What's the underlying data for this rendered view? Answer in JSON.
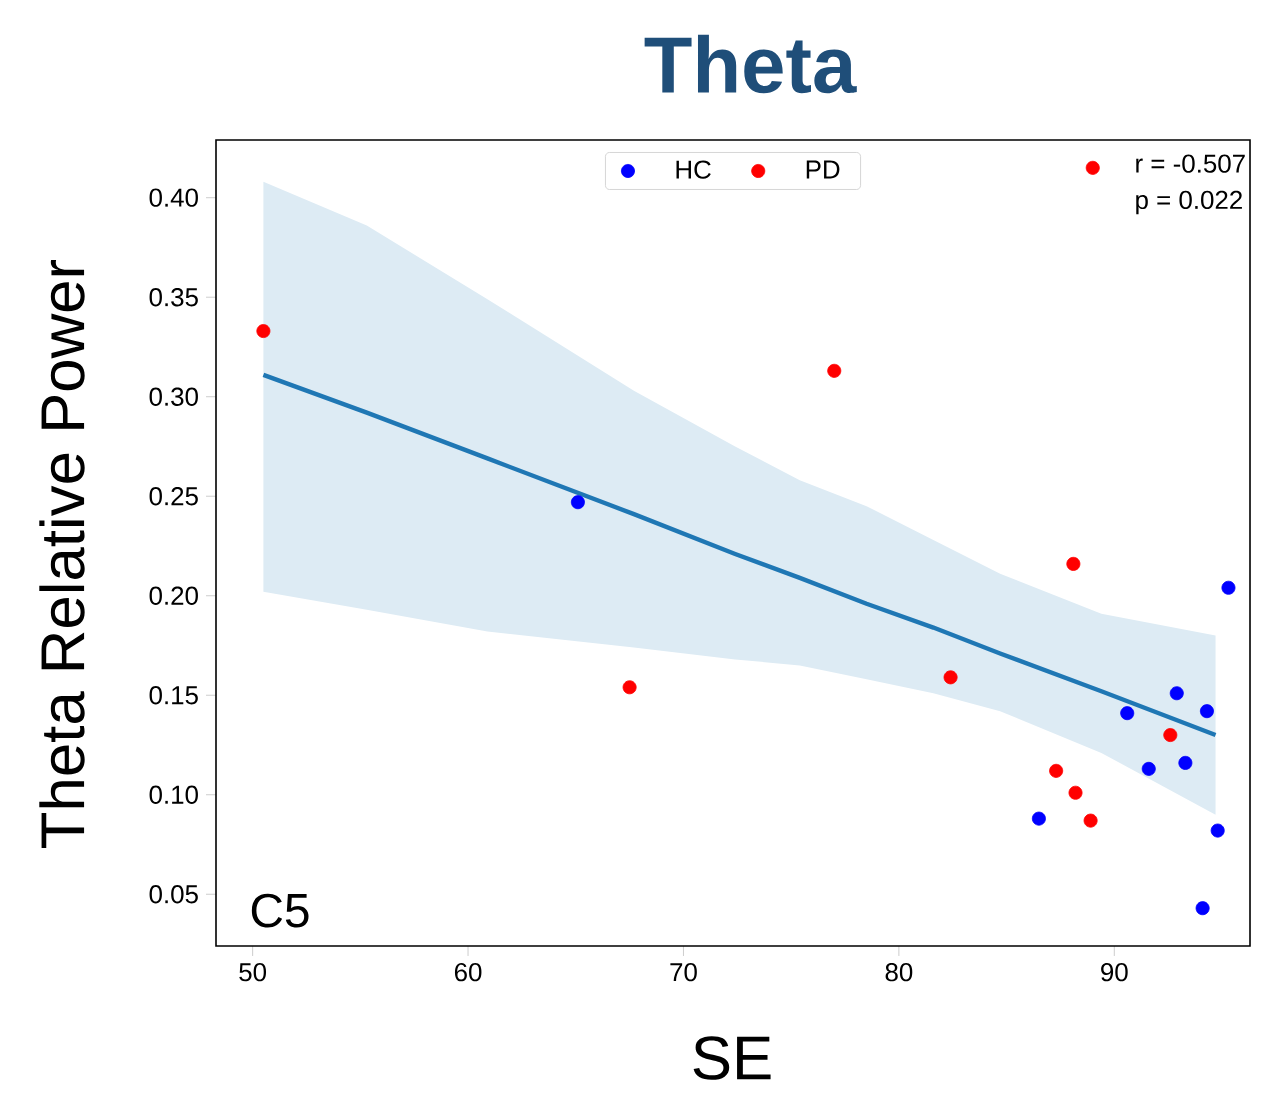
{
  "chart_data": {
    "type": "scatter",
    "title": "Theta",
    "xlabel": "SE",
    "ylabel": "Theta Relative Power",
    "xlim": [
      48.3,
      96.3
    ],
    "ylim": [
      0.024,
      0.429
    ],
    "xticks": [
      50,
      60,
      70,
      80,
      90
    ],
    "yticks": [
      {
        "value": 0.05,
        "label": "0.05"
      },
      {
        "value": 0.1,
        "label": "0.10"
      },
      {
        "value": 0.15,
        "label": "0.15"
      },
      {
        "value": 0.2,
        "label": "0.20"
      },
      {
        "value": 0.25,
        "label": "0.25"
      },
      {
        "value": 0.3,
        "label": "0.30"
      },
      {
        "value": 0.35,
        "label": "0.35"
      },
      {
        "value": 0.4,
        "label": "0.40"
      }
    ],
    "legend": "top",
    "annotations": [
      "r = -0.507",
      "p = 0.022",
      "C5"
    ],
    "series": [
      {
        "name": "HC",
        "marker": "circle",
        "color": "#0000ff",
        "x": [
          65.1,
          95.3,
          92.9,
          90.6,
          94.3,
          91.6,
          93.3,
          86.5,
          94.8,
          94.1
        ],
        "values": [
          0.247,
          0.204,
          0.151,
          0.141,
          0.142,
          0.113,
          0.116,
          0.088,
          0.082,
          0.043
        ]
      },
      {
        "name": "PD",
        "marker": "circle",
        "color": "#ff0000",
        "x": [
          50.5,
          77.0,
          67.5,
          82.4,
          88.1,
          87.3,
          88.2,
          88.9,
          92.6,
          89.0
        ],
        "values": [
          0.333,
          0.313,
          0.154,
          0.159,
          0.216,
          0.112,
          0.101,
          0.087,
          0.13,
          0.415
        ]
      },
      {
        "type": "line",
        "marker": "none",
        "color": "#1f77b4",
        "x": [
          50.5,
          55.3,
          60.9,
          67.7,
          72.4,
          75.4,
          78.5,
          81.6,
          84.7,
          89.4,
          94.7
        ],
        "values": [
          0.311,
          0.292,
          0.269,
          0.241,
          0.221,
          0.209,
          0.196,
          0.184,
          0.171,
          0.152,
          0.13
        ],
        "upper": [
          0.408,
          0.386,
          0.349,
          0.303,
          0.275,
          0.258,
          0.245,
          0.228,
          0.211,
          0.191,
          0.18
        ],
        "lower": [
          0.202,
          0.193,
          0.182,
          0.174,
          0.168,
          0.165,
          0.158,
          0.151,
          0.142,
          0.121,
          0.09
        ]
      }
    ]
  }
}
